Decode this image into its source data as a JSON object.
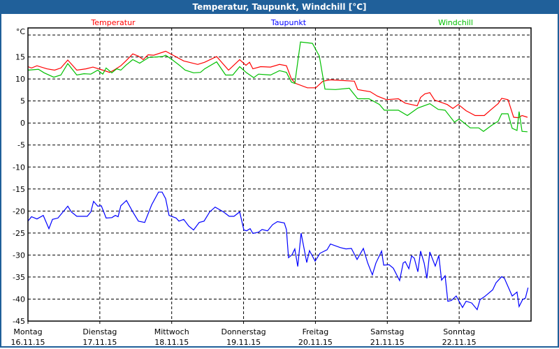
{
  "window": {
    "title": "Temperatur, Taupunkt, Windchill [°C]"
  },
  "chart_data": {
    "type": "line",
    "title": "Temperatur, Taupunkt, Windchill [°C]",
    "ylabel": "°C",
    "xlabel": "",
    "xlim": [
      0,
      168
    ],
    "x_unit": "hours since Montag 16.11.15 00:00",
    "ylim": [
      -45,
      21.6
    ],
    "yticks": [
      15,
      10,
      5,
      0,
      -5,
      -10,
      -15,
      -20,
      -25,
      -30,
      -35,
      -40,
      -45
    ],
    "ygrid": [
      20,
      15,
      10,
      5,
      0,
      -5,
      -10,
      -15,
      -20,
      -25,
      -30,
      -35,
      -40,
      -45
    ],
    "grid": true,
    "legend_placement": "top",
    "xticks": [
      {
        "day": "Montag",
        "date": "16.11.15",
        "x": 0
      },
      {
        "day": "Dienstag",
        "date": "17.11.15",
        "x": 24
      },
      {
        "day": "Mittwoch",
        "date": "18.11.15",
        "x": 48
      },
      {
        "day": "Donnerstag",
        "date": "19.11.15",
        "x": 72
      },
      {
        "day": "Freitag",
        "date": "20.11.15",
        "x": 96
      },
      {
        "day": "Samstag",
        "date": "21.11.15",
        "x": 120
      },
      {
        "day": "Sonntag",
        "date": "22.11.15",
        "x": 144
      }
    ],
    "series": [
      {
        "name": "Temperatur",
        "color": "#ff0000",
        "points": [
          [
            0,
            12.8
          ],
          [
            1.2,
            12.5
          ],
          [
            3,
            13
          ],
          [
            6.3,
            12.3
          ],
          [
            8.9,
            12
          ],
          [
            11,
            12.5
          ],
          [
            13.3,
            14.3
          ],
          [
            16.3,
            12
          ],
          [
            19.4,
            12.3
          ],
          [
            21.7,
            12.7
          ],
          [
            25,
            12
          ],
          [
            27.3,
            11.5
          ],
          [
            28.7,
            12
          ],
          [
            31,
            13
          ],
          [
            32.7,
            14.1
          ],
          [
            35,
            15.7
          ],
          [
            36.9,
            15.2
          ],
          [
            38.5,
            14.4
          ],
          [
            40.1,
            15.5
          ],
          [
            42,
            15.4
          ],
          [
            46,
            16.3
          ],
          [
            49,
            15.2
          ],
          [
            52,
            14.1
          ],
          [
            56.7,
            13.3
          ],
          [
            59,
            13.8
          ],
          [
            63,
            15.1
          ],
          [
            67,
            12
          ],
          [
            70.7,
            14.4
          ],
          [
            72.8,
            13.1
          ],
          [
            74,
            13.8
          ],
          [
            75.1,
            12.3
          ],
          [
            77.7,
            12.8
          ],
          [
            81,
            12.7
          ],
          [
            84,
            13.3
          ],
          [
            86.3,
            13
          ],
          [
            88,
            10
          ],
          [
            89.4,
            9
          ],
          [
            93.3,
            8
          ],
          [
            96.1,
            8
          ],
          [
            98.5,
            9.5
          ],
          [
            101,
            9.8
          ],
          [
            109,
            9.5
          ],
          [
            110.1,
            7.6
          ],
          [
            114.3,
            7.1
          ],
          [
            116.7,
            6.1
          ],
          [
            119.7,
            5.3
          ],
          [
            123.7,
            5.5
          ],
          [
            126,
            4.5
          ],
          [
            130,
            3.9
          ],
          [
            131.1,
            5.8
          ],
          [
            132.5,
            6.6
          ],
          [
            134.2,
            6.9
          ],
          [
            135.8,
            5.2
          ],
          [
            140,
            4.2
          ],
          [
            141.9,
            3.3
          ],
          [
            143.7,
            4.2
          ],
          [
            146.3,
            2.8
          ],
          [
            149.3,
            1.7
          ],
          [
            152.4,
            1.7
          ],
          [
            154.4,
            2.9
          ],
          [
            157,
            4.4
          ],
          [
            158.2,
            5.6
          ],
          [
            160.3,
            5.3
          ],
          [
            162.2,
            1.3
          ],
          [
            163.8,
            1.2
          ],
          [
            165,
            1.7
          ],
          [
            166.8,
            1.3
          ]
        ]
      },
      {
        "name": "Taupunkt",
        "color": "#0000ff",
        "points": [
          [
            0,
            -22.3
          ],
          [
            1.2,
            -21.3
          ],
          [
            3,
            -21.8
          ],
          [
            5.1,
            -21
          ],
          [
            7,
            -24
          ],
          [
            8.2,
            -21.9
          ],
          [
            10,
            -21.6
          ],
          [
            13.3,
            -18.9
          ],
          [
            14.5,
            -20.2
          ],
          [
            16.3,
            -21.2
          ],
          [
            19.8,
            -21.2
          ],
          [
            21,
            -20.2
          ],
          [
            21.9,
            -17.8
          ],
          [
            23.3,
            -18.9
          ],
          [
            24.5,
            -18.8
          ],
          [
            26.1,
            -21.6
          ],
          [
            28,
            -21.5
          ],
          [
            29.2,
            -21
          ],
          [
            30.1,
            -21.3
          ],
          [
            31,
            -18.8
          ],
          [
            32.9,
            -17.6
          ],
          [
            35,
            -20.2
          ],
          [
            36.9,
            -22.3
          ],
          [
            39,
            -22.6
          ],
          [
            41.3,
            -18.6
          ],
          [
            43.6,
            -15.7
          ],
          [
            44.8,
            -15.7
          ],
          [
            46,
            -17.2
          ],
          [
            47.1,
            -21
          ],
          [
            49.5,
            -21.6
          ],
          [
            50.4,
            -22.3
          ],
          [
            52,
            -21.9
          ],
          [
            53.7,
            -23.4
          ],
          [
            55.3,
            -24.3
          ],
          [
            57.2,
            -22.6
          ],
          [
            58.8,
            -22.3
          ],
          [
            60.7,
            -20.2
          ],
          [
            62.5,
            -19.1
          ],
          [
            65.3,
            -20.2
          ],
          [
            67.2,
            -21.2
          ],
          [
            68.8,
            -21.2
          ],
          [
            70.7,
            -20.2
          ],
          [
            72.1,
            -24.3
          ],
          [
            73,
            -24.5
          ],
          [
            74.2,
            -24
          ],
          [
            75.1,
            -25.1
          ],
          [
            77,
            -24.8
          ],
          [
            78.2,
            -24.2
          ],
          [
            80,
            -24.5
          ],
          [
            81.7,
            -23.1
          ],
          [
            83.3,
            -22.4
          ],
          [
            85.6,
            -22.7
          ],
          [
            86.3,
            -24.2
          ],
          [
            87,
            -30.6
          ],
          [
            88.2,
            -29.9
          ],
          [
            89.1,
            -28.6
          ],
          [
            90.1,
            -32.6
          ],
          [
            91.2,
            -25
          ],
          [
            93.1,
            -31.7
          ],
          [
            94,
            -29
          ],
          [
            95.9,
            -31.4
          ],
          [
            97.5,
            -29.6
          ],
          [
            99.9,
            -28.8
          ],
          [
            101,
            -27.5
          ],
          [
            104.3,
            -28.3
          ],
          [
            106.2,
            -28.6
          ],
          [
            108,
            -28.5
          ],
          [
            109.9,
            -31
          ],
          [
            112,
            -28.5
          ],
          [
            113.4,
            -31.7
          ],
          [
            115,
            -34.5
          ],
          [
            116.2,
            -31.8
          ],
          [
            118.1,
            -29.1
          ],
          [
            118.8,
            -32.3
          ],
          [
            120.6,
            -32.2
          ],
          [
            122,
            -33
          ],
          [
            124.1,
            -35.8
          ],
          [
            125.3,
            -31.8
          ],
          [
            126,
            -31.5
          ],
          [
            127.2,
            -33.1
          ],
          [
            128.1,
            -30.2
          ],
          [
            129,
            -30.7
          ],
          [
            130.2,
            -33.8
          ],
          [
            131.1,
            -29.1
          ],
          [
            132.3,
            -31.8
          ],
          [
            133.2,
            -35.3
          ],
          [
            134.2,
            -29.3
          ],
          [
            136,
            -32.5
          ],
          [
            137.2,
            -30.1
          ],
          [
            138.1,
            -35.7
          ],
          [
            139.3,
            -34.7
          ],
          [
            140.2,
            -40.5
          ],
          [
            141.4,
            -40.3
          ],
          [
            143,
            -39.3
          ],
          [
            145.1,
            -41.9
          ],
          [
            146.3,
            -40.5
          ],
          [
            148.2,
            -40.9
          ],
          [
            150,
            -42.4
          ],
          [
            151,
            -40.1
          ],
          [
            152.4,
            -39.5
          ],
          [
            155.2,
            -37.9
          ],
          [
            156.3,
            -36.3
          ],
          [
            158.2,
            -34.9
          ],
          [
            159.1,
            -35.3
          ],
          [
            161.7,
            -39.3
          ],
          [
            163.3,
            -38.4
          ],
          [
            164,
            -41.7
          ],
          [
            165.2,
            -40.1
          ],
          [
            166.1,
            -39.8
          ],
          [
            167,
            -37.4
          ]
        ]
      },
      {
        "name": "Windchill",
        "color": "#00c000",
        "points": [
          [
            0,
            12
          ],
          [
            3.5,
            12.2
          ],
          [
            5.4,
            11.4
          ],
          [
            8.6,
            10.4
          ],
          [
            11,
            10.9
          ],
          [
            13.3,
            13.5
          ],
          [
            16.3,
            10.9
          ],
          [
            18.7,
            11.2
          ],
          [
            21,
            11.1
          ],
          [
            23.3,
            12
          ],
          [
            25,
            11.1
          ],
          [
            26.1,
            12.5
          ],
          [
            28,
            11.4
          ],
          [
            29.6,
            12.3
          ],
          [
            31,
            12
          ],
          [
            32.7,
            13.1
          ],
          [
            35,
            14.4
          ],
          [
            37.3,
            13.6
          ],
          [
            38.5,
            14.1
          ],
          [
            40.4,
            14.9
          ],
          [
            45,
            15.1
          ],
          [
            46,
            15.4
          ],
          [
            48.3,
            14.3
          ],
          [
            50.6,
            13.1
          ],
          [
            52.5,
            12
          ],
          [
            55.3,
            11.4
          ],
          [
            57.6,
            11.5
          ],
          [
            59,
            12.3
          ],
          [
            63,
            13.9
          ],
          [
            66,
            10.9
          ],
          [
            68.4,
            10.9
          ],
          [
            70.7,
            12.8
          ],
          [
            73,
            11.4
          ],
          [
            75.4,
            10.3
          ],
          [
            77,
            11.1
          ],
          [
            81,
            10.9
          ],
          [
            84,
            11.9
          ],
          [
            86.3,
            11.5
          ],
          [
            88,
            9.3
          ],
          [
            89.1,
            9
          ],
          [
            91,
            18.4
          ],
          [
            95,
            18.1
          ],
          [
            97.3,
            15.2
          ],
          [
            99.2,
            7.7
          ],
          [
            102.7,
            7.6
          ],
          [
            107.3,
            7.9
          ],
          [
            110.1,
            5.5
          ],
          [
            113.9,
            5.5
          ],
          [
            117.4,
            4.2
          ],
          [
            119,
            2.9
          ],
          [
            123.7,
            2.9
          ],
          [
            126.7,
            1.7
          ],
          [
            130.2,
            3.4
          ],
          [
            134.2,
            4.4
          ],
          [
            137,
            3.1
          ],
          [
            139.3,
            2.9
          ],
          [
            142.4,
            0.2
          ],
          [
            144,
            0.9
          ],
          [
            147.7,
            -1.1
          ],
          [
            150.5,
            -1.1
          ],
          [
            152.1,
            -1.9
          ],
          [
            154.7,
            -0.6
          ],
          [
            157,
            0.4
          ],
          [
            158.2,
            2.1
          ],
          [
            160.3,
            2.1
          ],
          [
            161.7,
            -1.2
          ],
          [
            163.3,
            -1.7
          ],
          [
            164,
            2.6
          ],
          [
            165,
            -1.9
          ],
          [
            166.8,
            -2
          ]
        ]
      }
    ]
  }
}
